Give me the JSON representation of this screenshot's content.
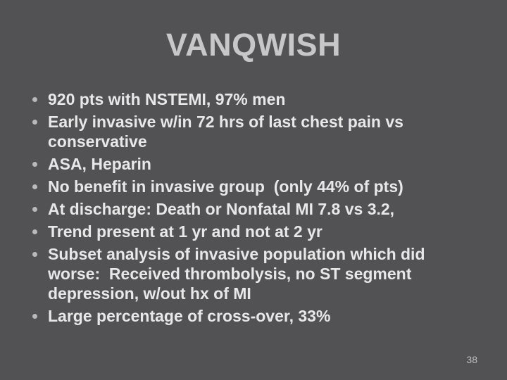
{
  "slide": {
    "title": "VANQWISH",
    "bullets": [
      "920 pts with NSTEMI, 97% men",
      "Early invasive w/in 72 hrs of last chest pain vs\nconservative",
      "ASA, Heparin",
      "No benefit in invasive group  (only 44% of pts)",
      "At discharge: Death or Nonfatal MI 7.8 vs 3.2,",
      "Trend present at 1 yr and not at 2 yr",
      "Subset analysis of invasive population which did\nworse:  Received thrombolysis, no ST segment\ndepression, w/out hx of MI",
      "Large percentage of cross-over, 33%"
    ],
    "page_number": "38",
    "colors": {
      "background": "#525254",
      "title_text": "#C7C7C9",
      "body_text": "#E8E8E8",
      "bullet_dot": "#B9B9B9",
      "page_number": "#BDBDBD"
    }
  }
}
